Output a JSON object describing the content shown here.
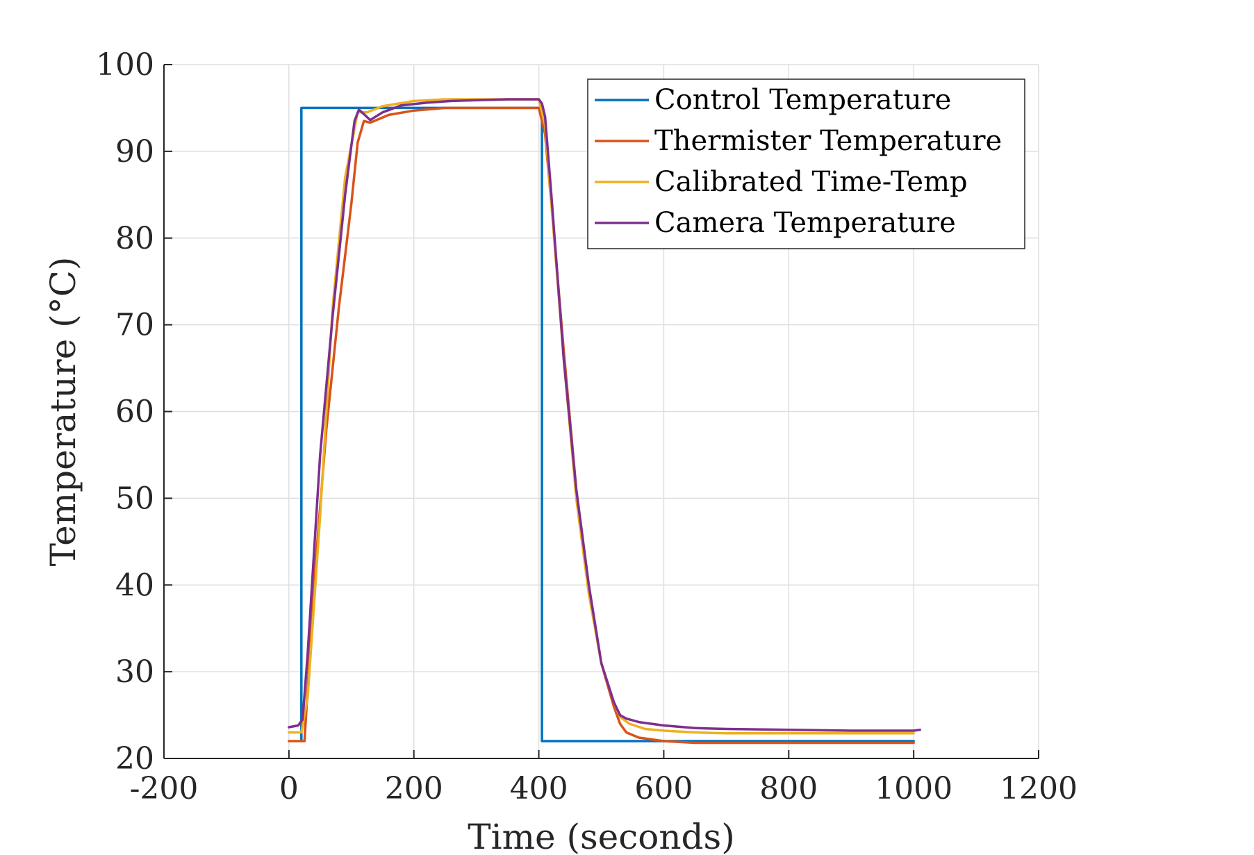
{
  "chart_data": {
    "type": "line",
    "xlabel": "Time (seconds)",
    "ylabel": "Temperature (°C)",
    "xlim": [
      -200,
      1200
    ],
    "ylim": [
      20,
      100
    ],
    "xticks": [
      -200,
      0,
      200,
      400,
      600,
      800,
      1000,
      1200
    ],
    "yticks": [
      20,
      30,
      40,
      50,
      60,
      70,
      80,
      90,
      100
    ],
    "grid": true,
    "legend_position": "top-right",
    "series": [
      {
        "name": "Control Temperature",
        "color": "#0072BD",
        "x": [
          20,
          20,
          405,
          405,
          1000
        ],
        "y": [
          22,
          95,
          95,
          22,
          22
        ]
      },
      {
        "name": "Thermister Temperature",
        "color": "#D95319",
        "x": [
          0,
          20,
          25,
          40,
          60,
          80,
          100,
          110,
          120,
          130,
          140,
          160,
          200,
          250,
          300,
          350,
          400,
          410,
          420,
          440,
          460,
          480,
          500,
          520,
          530,
          540,
          560,
          600,
          650,
          700,
          800,
          1000
        ],
        "y": [
          22,
          22,
          22,
          40,
          58,
          72,
          84,
          91,
          93.5,
          93.3,
          93.6,
          94.2,
          94.7,
          95,
          95,
          95,
          95,
          92,
          84,
          67,
          51,
          40,
          31,
          26,
          24,
          23,
          22.4,
          22,
          21.8,
          21.8,
          21.8,
          21.8
        ]
      },
      {
        "name": "Calibrated Time-Temp",
        "color": "#EDB120",
        "x": [
          0,
          20,
          30,
          50,
          70,
          90,
          110,
          125,
          150,
          200,
          250,
          300,
          400,
          410,
          420,
          440,
          460,
          480,
          500,
          520,
          530,
          545,
          570,
          600,
          650,
          700,
          800,
          1000
        ],
        "y": [
          23,
          23,
          27,
          48,
          72,
          87,
          94.5,
          94.5,
          95.2,
          95.8,
          96,
          96,
          96,
          93,
          84,
          66,
          50,
          39,
          31,
          26.5,
          24.8,
          24,
          23.4,
          23.2,
          23,
          22.9,
          22.9,
          22.9
        ]
      },
      {
        "name": "Camera Temperature",
        "color": "#7E2F8E",
        "x": [
          0,
          15,
          22,
          30,
          50,
          70,
          90,
          105,
          112,
          120,
          130,
          150,
          180,
          220,
          260,
          300,
          350,
          400,
          405,
          410,
          420,
          440,
          460,
          480,
          500,
          520,
          530,
          540,
          560,
          600,
          650,
          700,
          800,
          900,
          1000,
          1010
        ],
        "y": [
          23.6,
          23.8,
          24.5,
          32,
          55,
          71,
          85,
          93.5,
          94.8,
          94.3,
          93.6,
          94.5,
          95.3,
          95.6,
          95.8,
          95.9,
          96,
          96,
          95.5,
          94,
          85,
          66,
          51,
          40,
          31,
          26.5,
          25,
          24.6,
          24.2,
          23.8,
          23.5,
          23.4,
          23.3,
          23.2,
          23.2,
          23.3
        ]
      }
    ]
  }
}
